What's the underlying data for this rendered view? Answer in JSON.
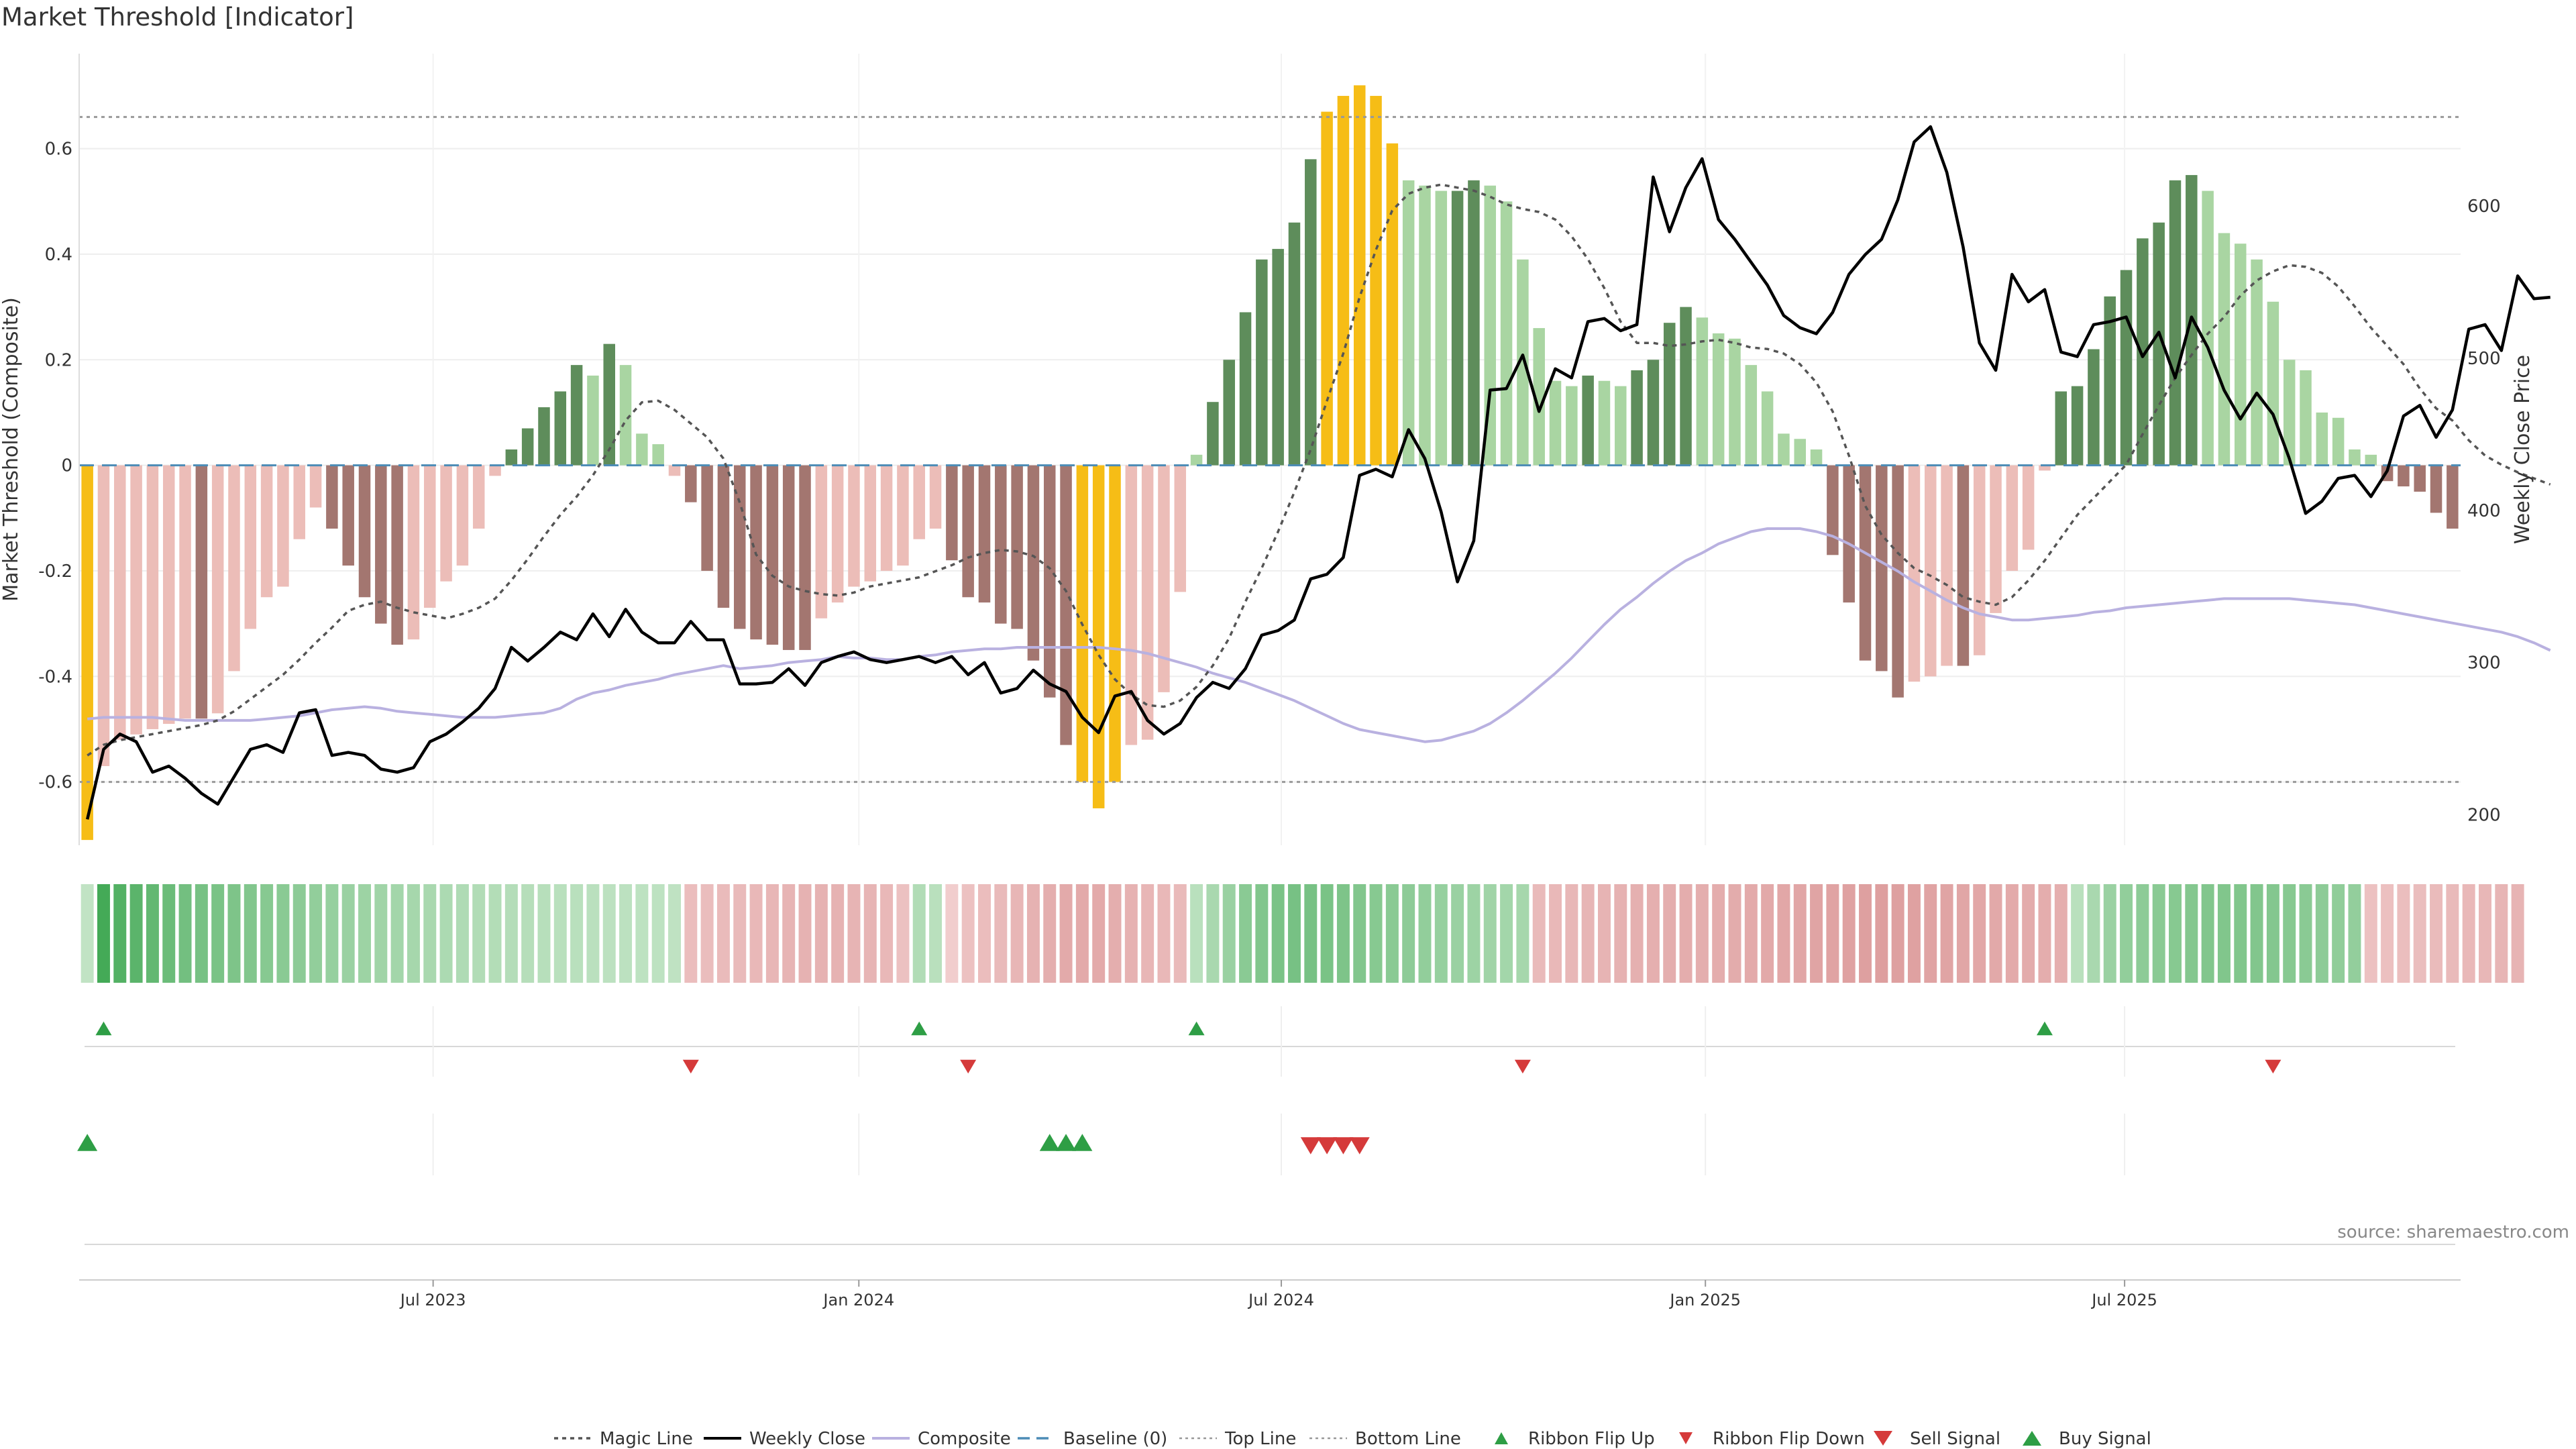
{
  "title": "Market Threshold [Indicator]",
  "source": "source: sharemaestro.com",
  "colors": {
    "bull_strong": "#5e8d5b",
    "bull_weak": "#a9d5a2",
    "bear_strong": "#a37670",
    "bear_weak": "#ecbdb8",
    "extreme": "#f6bd16",
    "close": "#000000",
    "magic": "#555555",
    "composite": "#b9b1e0",
    "baseline": "#4c8cb6",
    "threshold_line": "#999999",
    "signal_up": "#2e9e45",
    "signal_down": "#d53a3a"
  },
  "chart_data": {
    "type": "bar",
    "x_ticks": [
      "Jul 2023",
      "Jan 2024",
      "Jul 2024",
      "Jan 2025",
      "Jul 2025"
    ],
    "ylabel": "Market Threshold (Composite)",
    "y2label": "Weekly Close Price",
    "ylim": [
      -0.72,
      0.78
    ],
    "y_ticks": [
      "-0.6",
      "-0.4",
      "-0.2",
      "0",
      "0.2",
      "0.4",
      "0.6"
    ],
    "y2lim": [
      180,
      700
    ],
    "y2_ticks": [
      "200",
      "300",
      "400",
      "500",
      "600"
    ],
    "top_line": 0.66,
    "bottom_line": -0.6,
    "baseline": 0,
    "grid": true,
    "legend_position": "bottom-center",
    "bars": [
      -0.71,
      -0.57,
      -0.52,
      -0.51,
      -0.5,
      -0.49,
      -0.48,
      -0.48,
      -0.47,
      -0.39,
      -0.31,
      -0.25,
      -0.23,
      -0.14,
      -0.08,
      -0.12,
      -0.19,
      -0.25,
      -0.3,
      -0.34,
      -0.33,
      -0.27,
      -0.22,
      -0.19,
      -0.12,
      -0.02,
      0.03,
      0.07,
      0.11,
      0.14,
      0.19,
      0.17,
      0.23,
      0.19,
      0.06,
      0.04,
      -0.02,
      -0.07,
      -0.2,
      -0.27,
      -0.31,
      -0.33,
      -0.34,
      -0.35,
      -0.35,
      -0.29,
      -0.26,
      -0.23,
      -0.22,
      -0.2,
      -0.19,
      -0.14,
      -0.12,
      -0.18,
      -0.25,
      -0.26,
      -0.3,
      -0.31,
      -0.37,
      -0.44,
      -0.53,
      -0.6,
      -0.65,
      -0.6,
      -0.53,
      -0.52,
      -0.43,
      -0.24,
      0.02,
      0.12,
      0.2,
      0.29,
      0.39,
      0.41,
      0.46,
      0.58,
      0.67,
      0.7,
      0.72,
      0.7,
      0.61,
      0.54,
      0.53,
      0.52,
      0.52,
      0.54,
      0.53,
      0.5,
      0.39,
      0.26,
      0.16,
      0.15,
      0.17,
      0.16,
      0.15,
      0.18,
      0.2,
      0.27,
      0.3,
      0.28,
      0.25,
      0.24,
      0.19,
      0.14,
      0.06,
      0.05,
      0.03,
      -0.17,
      -0.26,
      -0.37,
      -0.39,
      -0.44,
      -0.41,
      -0.4,
      -0.38,
      -0.38,
      -0.36,
      -0.28,
      -0.2,
      -0.16,
      -0.01,
      0.14,
      0.15,
      0.22,
      0.32,
      0.37,
      0.43,
      0.46,
      0.54,
      0.55,
      0.52,
      0.44,
      0.42,
      0.39,
      0.31,
      0.2,
      0.18,
      0.1,
      0.09,
      0.03,
      0.02,
      -0.03,
      -0.04,
      -0.05,
      -0.09,
      -0.12
    ],
    "weekly_close": [
      197,
      243,
      253,
      248,
      228,
      232,
      224,
      214,
      207,
      225,
      243,
      246,
      241,
      267,
      269,
      239,
      241,
      239,
      230,
      228,
      231,
      248,
      253,
      261,
      270,
      283,
      310,
      301,
      310,
      320,
      315,
      332,
      317,
      335,
      320,
      313,
      313,
      327,
      315,
      315,
      286,
      286,
      287,
      296,
      285,
      300,
      304,
      307,
      302,
      300,
      302,
      304,
      300,
      304,
      292,
      300,
      280,
      283,
      295,
      286,
      281,
      264,
      254,
      278,
      281,
      262,
      253,
      260,
      277,
      287,
      283,
      296,
      318,
      321,
      328,
      355,
      358,
      369,
      423,
      427,
      422,
      453,
      434,
      399,
      353,
      380,
      479,
      480,
      502,
      465,
      493,
      487,
      524,
      526,
      518,
      522,
      619,
      583,
      612,
      631,
      591,
      578,
      563,
      548,
      528,
      520,
      516,
      530,
      555,
      568,
      578,
      604,
      642,
      652,
      622,
      573,
      510,
      492,
      555,
      537,
      545,
      504,
      501,
      522,
      524,
      527,
      501,
      517,
      487,
      527,
      507,
      479,
      460,
      477,
      463,
      434,
      398,
      406,
      421,
      423,
      409,
      426,
      462,
      469,
      448,
      466,
      519,
      522,
      505,
      554,
      539,
      540
    ],
    "magic_line": [
      239,
      246,
      249,
      251,
      253,
      255,
      257,
      259,
      262,
      268,
      276,
      284,
      292,
      302,
      313,
      323,
      334,
      338,
      340,
      336,
      333,
      331,
      329,
      332,
      336,
      342,
      354,
      368,
      383,
      397,
      409,
      423,
      440,
      459,
      471,
      472,
      466,
      457,
      448,
      434,
      405,
      371,
      357,
      350,
      347,
      345,
      344,
      346,
      350,
      352,
      354,
      356,
      360,
      364,
      369,
      372,
      374,
      373,
      370,
      362,
      347,
      325,
      305,
      289,
      279,
      272,
      271,
      275,
      284,
      298,
      316,
      340,
      362,
      386,
      412,
      440,
      472,
      503,
      540,
      571,
      597,
      608,
      612,
      614,
      612,
      610,
      606,
      601,
      598,
      596,
      591,
      580,
      565,
      546,
      524,
      510,
      510,
      508,
      509,
      511,
      512,
      510,
      507,
      506,
      503,
      496,
      484,
      465,
      436,
      403,
      384,
      372,
      362,
      357,
      351,
      343,
      340,
      338,
      343,
      354,
      367,
      382,
      397,
      408,
      419,
      430,
      450,
      469,
      487,
      502,
      516,
      527,
      541,
      551,
      557,
      561,
      560,
      556,
      547,
      534,
      520,
      508,
      496,
      480,
      467,
      459,
      446,
      436,
      430,
      425,
      421,
      417
    ],
    "composite": [
      263,
      264,
      264,
      264,
      264,
      263,
      262,
      262,
      262,
      262,
      262,
      263,
      264,
      265,
      267,
      269,
      270,
      271,
      270,
      268,
      267,
      266,
      265,
      264,
      264,
      264,
      265,
      266,
      267,
      270,
      276,
      280,
      282,
      285,
      287,
      289,
      292,
      294,
      296,
      298,
      296,
      297,
      298,
      300,
      301,
      302,
      304,
      303,
      303,
      302,
      302,
      304,
      305,
      307,
      308,
      309,
      309,
      310,
      310,
      310,
      310,
      310,
      310,
      309,
      308,
      306,
      303,
      300,
      297,
      293,
      290,
      287,
      283,
      279,
      275,
      270,
      265,
      260,
      256,
      254,
      252,
      250,
      248,
      249,
      252,
      255,
      260,
      267,
      275,
      284,
      293,
      303,
      314,
      325,
      335,
      343,
      352,
      360,
      367,
      372,
      378,
      382,
      386,
      388,
      388,
      388,
      386,
      383,
      378,
      372,
      366,
      360,
      353,
      347,
      341,
      336,
      332,
      330,
      328,
      328,
      329,
      330,
      331,
      333,
      334,
      336,
      337,
      338,
      339,
      340,
      341,
      342,
      342,
      342,
      342,
      342,
      341,
      340,
      339,
      338,
      336,
      334,
      332,
      330,
      328,
      326,
      324,
      322,
      320,
      317,
      313,
      308
    ],
    "ribbon": [
      0.15,
      0.95,
      0.85,
      0.8,
      0.75,
      0.7,
      0.65,
      0.62,
      0.6,
      0.58,
      0.55,
      0.52,
      0.5,
      0.48,
      0.45,
      0.42,
      0.4,
      0.38,
      0.36,
      0.34,
      0.32,
      0.3,
      0.28,
      0.26,
      0.25,
      0.24,
      0.23,
      0.22,
      0.21,
      0.2,
      0.2,
      0.19,
      0.18,
      0.18,
      0.17,
      0.17,
      0.16,
      -0.35,
      -0.36,
      -0.38,
      -0.4,
      -0.42,
      -0.45,
      -0.48,
      -0.5,
      -0.5,
      -0.5,
      -0.48,
      -0.46,
      -0.42,
      -0.3,
      0.25,
      0.2,
      -0.15,
      -0.3,
      -0.35,
      -0.4,
      -0.45,
      -0.5,
      -0.55,
      -0.6,
      -0.6,
      -0.6,
      -0.55,
      -0.5,
      -0.45,
      -0.42,
      -0.4,
      0.2,
      0.3,
      0.4,
      0.5,
      0.55,
      0.6,
      0.62,
      0.62,
      0.6,
      0.58,
      0.55,
      0.52,
      0.5,
      0.48,
      0.45,
      0.42,
      0.4,
      0.38,
      0.36,
      0.34,
      0.32,
      -0.4,
      -0.42,
      -0.44,
      -0.46,
      -0.48,
      -0.5,
      -0.52,
      -0.54,
      -0.55,
      -0.56,
      -0.55,
      -0.56,
      -0.58,
      -0.6,
      -0.62,
      -0.64,
      -0.66,
      -0.68,
      -0.7,
      -0.72,
      -0.74,
      -0.75,
      -0.74,
      -0.72,
      -0.7,
      -0.68,
      -0.66,
      -0.64,
      -0.62,
      -0.6,
      -0.58,
      -0.56,
      -0.54,
      0.2,
      0.3,
      0.4,
      0.45,
      0.48,
      0.5,
      0.52,
      0.54,
      0.55,
      0.56,
      0.56,
      0.55,
      0.54,
      0.52,
      0.5,
      0.48,
      0.46,
      0.44,
      -0.3,
      -0.32,
      -0.34,
      -0.36,
      -0.38,
      -0.4,
      -0.42,
      -0.44,
      -0.46,
      -0.48
    ],
    "ribbon_flip_up": [
      1,
      51,
      68,
      120
    ],
    "ribbon_flip_down": [
      37,
      54,
      88,
      134
    ],
    "buy_signal": [
      0,
      59,
      60,
      61
    ],
    "sell_signal": [
      75,
      76,
      77,
      78
    ]
  },
  "legend": [
    {
      "label": "Magic Line",
      "kind": "dotted"
    },
    {
      "label": "Weekly Close",
      "kind": "solid"
    },
    {
      "label": "Composite",
      "kind": "composite"
    },
    {
      "label": "Baseline (0)",
      "kind": "dashed"
    },
    {
      "label": "Top Line",
      "kind": "thin-dotted"
    },
    {
      "label": "Bottom Line",
      "kind": "thin-dotted"
    },
    {
      "label": "Ribbon Flip Up",
      "kind": "tri-up-small"
    },
    {
      "label": "Ribbon Flip Down",
      "kind": "tri-down-small"
    },
    {
      "label": "Sell Signal",
      "kind": "tri-down"
    },
    {
      "label": "Buy Signal",
      "kind": "tri-up"
    }
  ]
}
